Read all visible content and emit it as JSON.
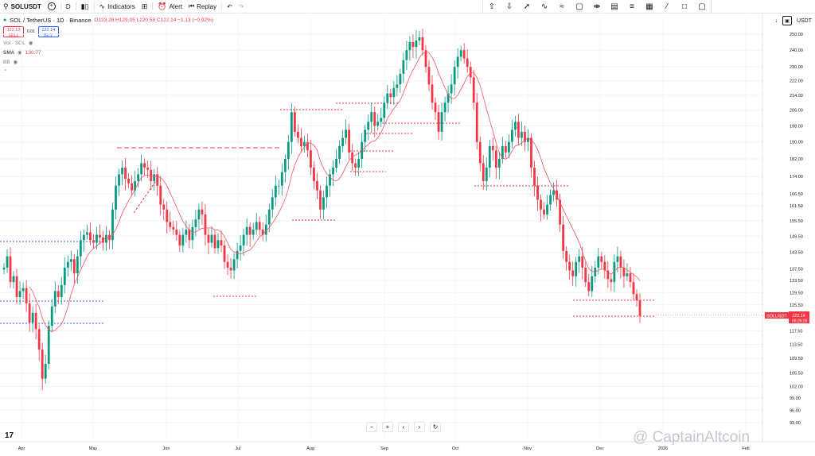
{
  "toolbar": {
    "symbol": "SOLUSDT",
    "add_icon": "+",
    "interval": "D",
    "indicators_label": "Indicators",
    "alert_label": "Alert",
    "replay_label": "Replay"
  },
  "legend": {
    "title": "SOL / TetherUS · 1D · Binance",
    "ohlc": "O123.28 H129.05 L120.58 C122.14 −1.13 (−0.92%)",
    "sell_price": "122.13",
    "sell_label": "SELL",
    "spread": "0.01",
    "buy_price": "122.14",
    "buy_label": "BUY",
    "vol_label": "Vol · SOL",
    "sma_label": "SMA",
    "sma_value": "130.77",
    "bb_label": "BB"
  },
  "axis": {
    "currency": "USDT",
    "price_tag_symbol": "SOLUSDT",
    "price_tag_value": "122.14",
    "price_tag_timer": "06:26:26"
  },
  "watermark": "@ CaptainAltcoin",
  "colors": {
    "up": "#089981",
    "down": "#f23645",
    "sma": "#f7525f",
    "blue_line": "#2962ff"
  },
  "chart_data": {
    "type": "candlestick",
    "y_ticks": [
      93.0,
      96.0,
      99.0,
      102.0,
      105.5,
      109.5,
      113.5,
      117.5,
      121.5,
      125.5,
      129.5,
      133.5,
      137.5,
      143.5,
      149.5,
      155.5,
      161.5,
      166.5,
      174.0,
      182.0,
      190.0,
      198.0,
      206.0,
      214.0,
      222.0,
      230.0,
      240.0,
      250.0
    ],
    "x_labels": [
      "Apr",
      "May",
      "Jun",
      "Jul",
      "Aug",
      "Sep",
      "Oct",
      "Nov",
      "Dec",
      "2026",
      "Feb"
    ],
    "close": [
      138,
      142,
      133,
      135,
      128,
      130,
      131,
      126,
      120,
      123,
      118,
      112,
      104,
      108,
      119,
      125,
      130,
      128,
      132,
      138,
      140,
      141,
      136,
      142,
      148,
      150,
      151,
      148,
      147,
      150,
      149,
      147,
      150,
      148,
      160,
      170,
      175,
      178,
      173,
      171,
      168,
      172,
      175,
      180,
      178,
      177,
      172,
      175,
      170,
      162,
      160,
      155,
      153,
      152,
      150,
      146,
      150,
      152,
      148,
      153,
      156,
      160,
      158,
      150,
      147,
      150,
      145,
      148,
      146,
      140,
      138,
      137,
      141,
      144,
      146,
      150,
      153,
      150,
      152,
      155,
      152,
      150,
      154,
      160,
      165,
      170,
      170,
      176,
      182,
      190,
      205,
      195,
      192,
      188,
      190,
      186,
      178,
      172,
      168,
      160,
      165,
      170,
      175,
      178,
      182,
      188,
      192,
      196,
      185,
      180,
      178,
      182,
      190,
      196,
      200,
      205,
      198,
      200,
      202,
      210,
      215,
      213,
      218,
      220,
      226,
      234,
      240,
      245,
      242,
      246,
      248,
      240,
      230,
      220,
      210,
      205,
      195,
      205,
      210,
      215,
      220,
      230,
      236,
      240,
      235,
      230,
      224,
      210,
      190,
      180,
      172,
      178,
      188,
      186,
      178,
      182,
      188,
      185,
      190,
      196,
      200,
      192,
      195,
      190,
      192,
      178,
      170,
      164,
      160,
      158,
      162,
      166,
      168,
      164,
      154,
      144,
      140,
      137,
      135,
      140,
      142,
      138,
      133,
      130,
      135,
      138,
      142,
      140,
      137,
      134,
      133,
      140,
      142,
      138,
      135,
      136,
      133,
      129,
      127,
      122
    ]
  }
}
